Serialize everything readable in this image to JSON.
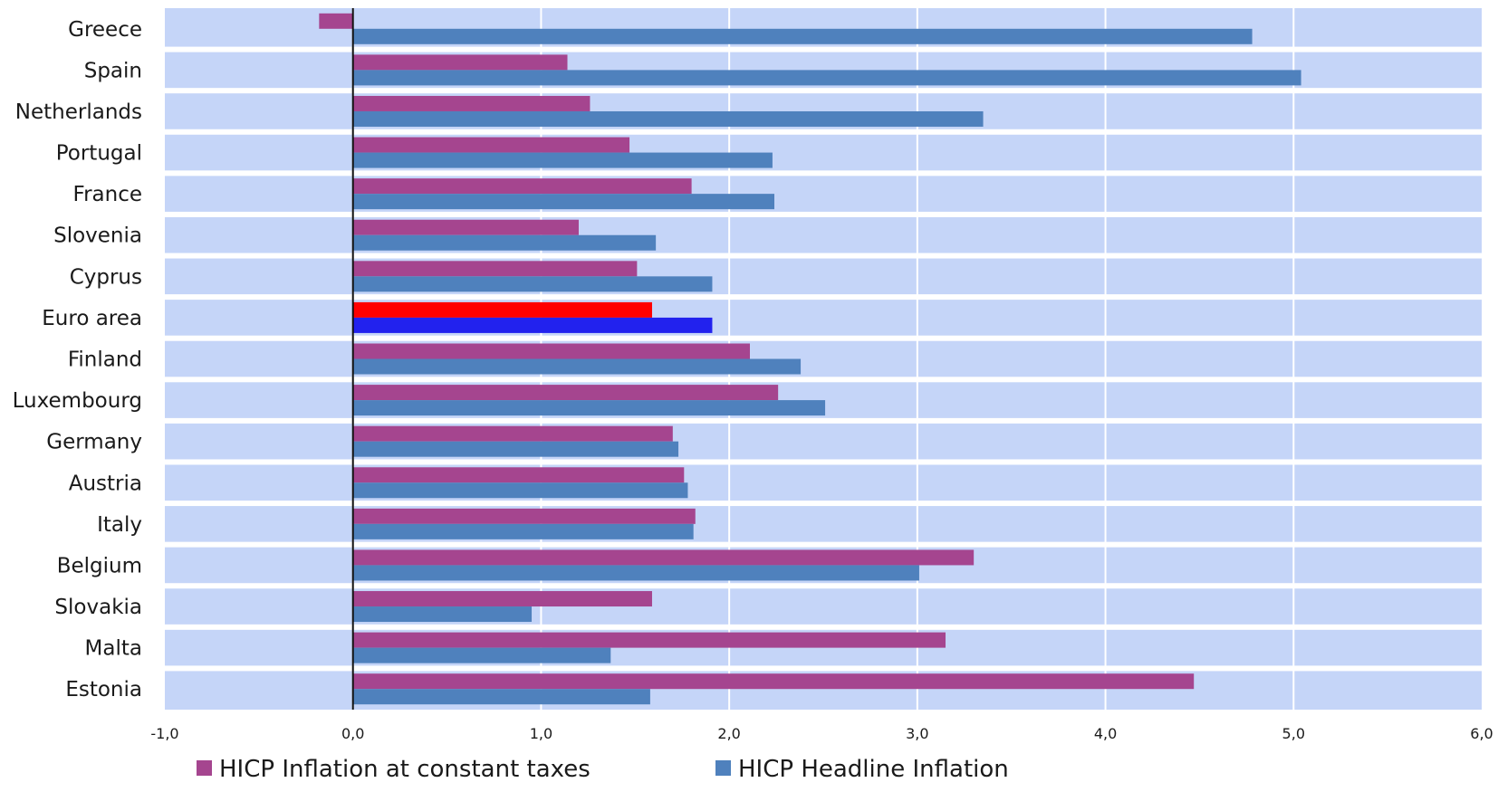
{
  "chart_data": {
    "type": "bar",
    "orientation": "horizontal",
    "categories": [
      "Greece",
      "Spain",
      "Netherlands",
      "Portugal",
      "France",
      "Slovenia",
      "Cyprus",
      "Euro area",
      "Finland",
      "Luxembourg",
      "Germany",
      "Austria",
      "Italy",
      "Belgium",
      "Slovakia",
      "Malta",
      "Estonia"
    ],
    "series": [
      {
        "name": "HICP Inflation at constant taxes",
        "color": "#a5458f",
        "values": [
          -0.18,
          1.14,
          1.26,
          1.47,
          1.8,
          1.2,
          1.51,
          1.59,
          2.11,
          2.26,
          1.7,
          1.76,
          1.82,
          3.3,
          1.59,
          3.15,
          4.47
        ]
      },
      {
        "name": "HICP Headline Inflation",
        "color": "#4f81bd",
        "values": [
          4.78,
          5.04,
          3.35,
          2.23,
          2.24,
          1.61,
          1.91,
          1.91,
          2.38,
          2.51,
          1.73,
          1.78,
          1.81,
          3.01,
          0.95,
          1.37,
          1.58
        ]
      }
    ],
    "highlight": {
      "category": "Euro area",
      "colors": [
        "#ff0000",
        "#2222ee"
      ]
    },
    "x_ticks": [
      "-1,0",
      "0,0",
      "1,0",
      "2,0",
      "3,0",
      "4,0",
      "5,0",
      "6,0"
    ],
    "xlim": [
      -1.0,
      6.0
    ],
    "grid": true,
    "plot_background": "#c5d5f8",
    "legend_position": "bottom-left",
    "title": "",
    "xlabel": "",
    "ylabel": ""
  }
}
